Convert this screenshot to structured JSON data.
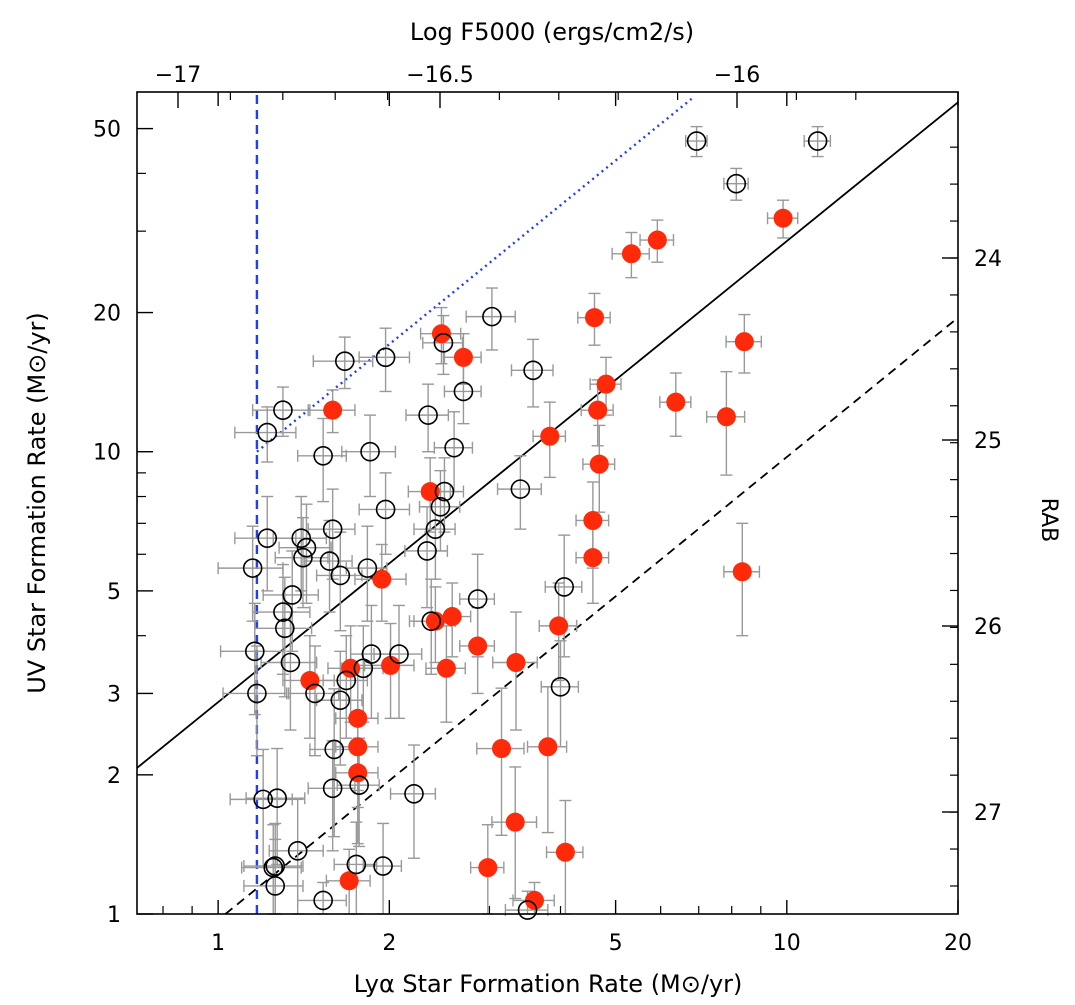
{
  "chart_data": {
    "type": "scatter",
    "title": "",
    "xlabel": "Lyα Star Formation Rate (M⊙/yr)",
    "ylabel": "UV Star Formation Rate (M⊙/yr)",
    "top_axis_label": "Log F5000 (ergs/cm2/s)",
    "right_axis_label": "RAB",
    "x_scale": "log",
    "y_scale": "log",
    "xlim": [
      0.72,
      20
    ],
    "ylim": [
      1,
      60
    ],
    "x_ticks": [
      1,
      2,
      5,
      10,
      20
    ],
    "y_ticks": [
      1,
      2,
      3,
      5,
      10,
      20,
      50
    ],
    "top_ticks": [
      -17,
      -16.5,
      -16
    ],
    "right_ticks": [
      24,
      25,
      26,
      27
    ],
    "grid": false,
    "legend": "none",
    "colors": {
      "filled": "#ff2a0a",
      "open": "#000000",
      "errorbar": "#999999",
      "limit_line": "#1f3cff"
    },
    "lines": [
      {
        "style": "solid",
        "color": "#000000",
        "points": [
          [
            0.72,
            2.07
          ],
          [
            20,
            57
          ]
        ]
      },
      {
        "style": "dashed",
        "color": "#000000",
        "points": [
          [
            1.03,
            1
          ],
          [
            20,
            19.5
          ]
        ]
      },
      {
        "style": "dotted",
        "color": "#1f3cff",
        "points": [
          [
            1.17,
            10
          ],
          [
            6.8,
            58
          ]
        ]
      },
      {
        "style": "dashed",
        "color": "#1f3cff",
        "points": [
          [
            1.17,
            1
          ],
          [
            1.17,
            60
          ]
        ]
      }
    ],
    "series": [
      {
        "name": "",
        "marker": "filled-circle",
        "points": [
          [
            1.59,
            12.3,
            0.15,
            1.3
          ],
          [
            2.47,
            18.0,
            0.2,
            2.5
          ],
          [
            2.7,
            16.0,
            0.2,
            2.0
          ],
          [
            2.36,
            8.2,
            0.2,
            1.5
          ],
          [
            1.94,
            5.3,
            0.2,
            1.0
          ],
          [
            2.41,
            4.3,
            0.2,
            0.8
          ],
          [
            2.58,
            4.4,
            0.2,
            0.8
          ],
          [
            2.86,
            3.8,
            0.2,
            0.8
          ],
          [
            3.83,
            10.8,
            0.25,
            2.0
          ],
          [
            4.59,
            19.5,
            0.3,
            2.5
          ],
          [
            4.65,
            12.3,
            0.3,
            2.0
          ],
          [
            4.81,
            14.0,
            0.3,
            2.0
          ],
          [
            4.68,
            9.4,
            0.3,
            2.0
          ],
          [
            4.56,
            7.1,
            0.3,
            1.5
          ],
          [
            4.56,
            5.9,
            0.3,
            1.2
          ],
          [
            3.97,
            4.2,
            0.3,
            1.0
          ],
          [
            3.34,
            3.5,
            0.3,
            1.0
          ],
          [
            2.52,
            3.4,
            0.2,
            0.8
          ],
          [
            2.01,
            3.45,
            0.2,
            0.8
          ],
          [
            1.71,
            3.4,
            0.15,
            0.8
          ],
          [
            1.45,
            3.2,
            0.15,
            0.8
          ],
          [
            1.76,
            2.65,
            0.15,
            0.8
          ],
          [
            1.76,
            2.3,
            0.15,
            0.6
          ],
          [
            1.76,
            2.02,
            0.15,
            0.6
          ],
          [
            3.15,
            2.28,
            0.3,
            0.8
          ],
          [
            3.8,
            2.3,
            0.3,
            0.8
          ],
          [
            3.33,
            1.58,
            0.3,
            0.5
          ],
          [
            4.08,
            1.36,
            0.3,
            0.4
          ],
          [
            2.98,
            1.26,
            0.2,
            0.3
          ],
          [
            1.7,
            1.18,
            0.15,
            0.2
          ],
          [
            3.6,
            1.07,
            0.3,
            0.1
          ],
          [
            5.33,
            26.8,
            0.4,
            3.0
          ],
          [
            5.92,
            28.7,
            0.4,
            3.0
          ],
          [
            6.38,
            12.8,
            0.4,
            2.0
          ],
          [
            7.83,
            11.9,
            0.6,
            3.0
          ],
          [
            8.42,
            17.3,
            0.6,
            2.5
          ],
          [
            8.35,
            5.5,
            0.6,
            1.5
          ],
          [
            9.85,
            32.0,
            0.6,
            3.0
          ]
        ]
      },
      {
        "name": "",
        "marker": "open-circle",
        "points": [
          [
            1.22,
            11.0,
            0.15,
            1.5
          ],
          [
            1.3,
            12.3,
            0.15,
            1.5
          ],
          [
            1.67,
            15.7,
            0.2,
            2.0
          ],
          [
            1.97,
            16.0,
            0.2,
            2.5
          ],
          [
            3.03,
            19.6,
            0.3,
            3.0
          ],
          [
            3.58,
            15.0,
            0.3,
            2.5
          ],
          [
            2.49,
            17.2,
            0.2,
            2.5
          ],
          [
            2.7,
            13.5,
            0.2,
            2.0
          ],
          [
            2.34,
            12.0,
            0.2,
            2.0
          ],
          [
            2.6,
            10.2,
            0.2,
            2.0
          ],
          [
            1.53,
            9.8,
            0.15,
            2.0
          ],
          [
            1.85,
            10.0,
            0.2,
            2.0
          ],
          [
            1.97,
            7.5,
            0.2,
            1.5
          ],
          [
            2.5,
            8.2,
            0.2,
            1.5
          ],
          [
            2.46,
            7.6,
            0.2,
            1.5
          ],
          [
            2.41,
            6.8,
            0.2,
            1.5
          ],
          [
            2.33,
            6.1,
            0.2,
            1.5
          ],
          [
            3.4,
            8.3,
            0.3,
            1.5
          ],
          [
            1.22,
            6.5,
            0.15,
            1.5
          ],
          [
            1.4,
            6.5,
            0.15,
            1.5
          ],
          [
            1.43,
            6.2,
            0.15,
            1.5
          ],
          [
            1.59,
            6.8,
            0.15,
            1.5
          ],
          [
            1.41,
            5.9,
            0.15,
            1.3
          ],
          [
            1.57,
            5.8,
            0.15,
            1.3
          ],
          [
            1.64,
            5.4,
            0.15,
            1.3
          ],
          [
            1.83,
            5.6,
            0.15,
            1.3
          ],
          [
            1.15,
            5.6,
            0.15,
            1.3
          ],
          [
            1.35,
            4.9,
            0.15,
            1.2
          ],
          [
            1.3,
            4.5,
            0.15,
            1.2
          ],
          [
            1.31,
            4.15,
            0.15,
            1.2
          ],
          [
            2.86,
            4.8,
            0.2,
            1.2
          ],
          [
            4.06,
            5.1,
            0.3,
            1.5
          ],
          [
            2.37,
            4.3,
            0.2,
            1.0
          ],
          [
            1.16,
            3.7,
            0.15,
            1.0
          ],
          [
            1.34,
            3.5,
            0.15,
            1.0
          ],
          [
            1.86,
            3.65,
            0.15,
            1.0
          ],
          [
            2.08,
            3.65,
            0.2,
            1.0
          ],
          [
            1.68,
            3.2,
            0.15,
            0.8
          ],
          [
            1.8,
            3.4,
            0.15,
            0.8
          ],
          [
            1.17,
            3.0,
            0.15,
            0.8
          ],
          [
            1.48,
            3.0,
            0.15,
            0.8
          ],
          [
            1.64,
            2.9,
            0.15,
            0.8
          ],
          [
            4.0,
            3.1,
            0.3,
            0.8
          ],
          [
            1.6,
            2.27,
            0.15,
            0.8
          ],
          [
            1.2,
            1.77,
            0.15,
            0.5
          ],
          [
            1.27,
            1.78,
            0.15,
            0.5
          ],
          [
            1.59,
            1.87,
            0.15,
            0.5
          ],
          [
            1.77,
            1.9,
            0.15,
            0.5
          ],
          [
            2.21,
            1.82,
            0.2,
            0.5
          ],
          [
            1.38,
            1.37,
            0.15,
            0.4
          ],
          [
            1.26,
            1.27,
            0.15,
            0.3
          ],
          [
            1.25,
            1.26,
            0.15,
            0.3
          ],
          [
            1.26,
            1.15,
            0.15,
            0.3
          ],
          [
            1.75,
            1.28,
            0.15,
            0.3
          ],
          [
            1.95,
            1.27,
            0.15,
            0.3
          ],
          [
            1.53,
            1.07,
            0.15,
            0.1
          ],
          [
            3.5,
            1.02,
            0.3,
            0.1
          ],
          [
            6.94,
            47.0,
            0.3,
            3.5
          ],
          [
            8.15,
            38.0,
            0.4,
            3.0
          ],
          [
            11.33,
            47.0,
            0.6,
            3.5
          ]
        ]
      }
    ]
  }
}
